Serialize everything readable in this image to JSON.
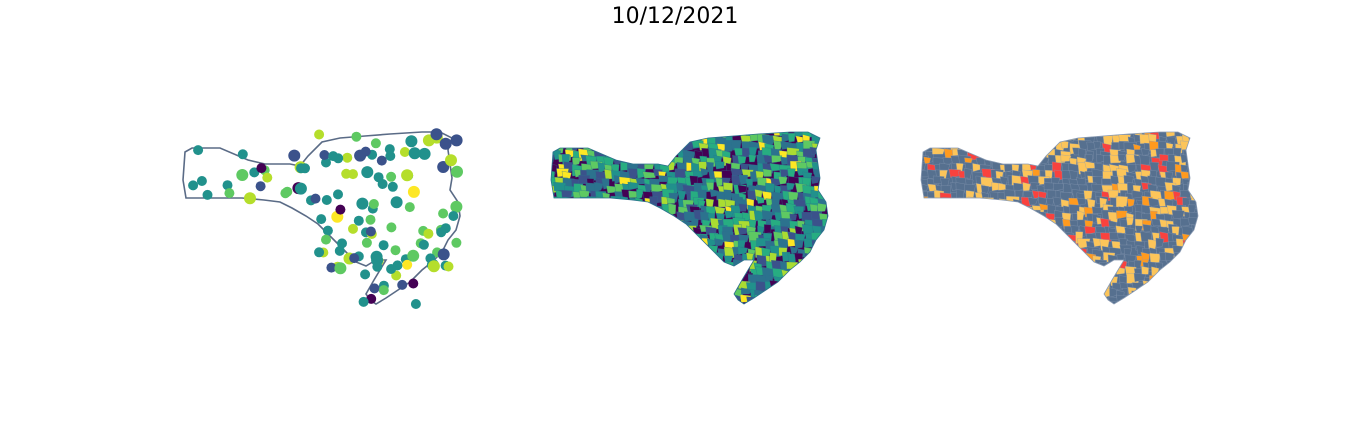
{
  "title": "10/12/2021",
  "panels": [
    {
      "kind": "point-map",
      "outline_color": "#5a6b86",
      "palette": [
        "#440154",
        "#3b528b",
        "#21918c",
        "#5ec962",
        "#b5de2b",
        "#fde725"
      ]
    },
    {
      "kind": "choropleth-continuous",
      "palette": [
        "#440154",
        "#3b528b",
        "#2c728e",
        "#21918c",
        "#27ad81",
        "#5ec962",
        "#aadc32",
        "#fde725"
      ]
    },
    {
      "kind": "choropleth-categorical",
      "palette": [
        "#56708f",
        "#fcc55a",
        "#ff9a1e",
        "#f9423e"
      ]
    }
  ]
}
